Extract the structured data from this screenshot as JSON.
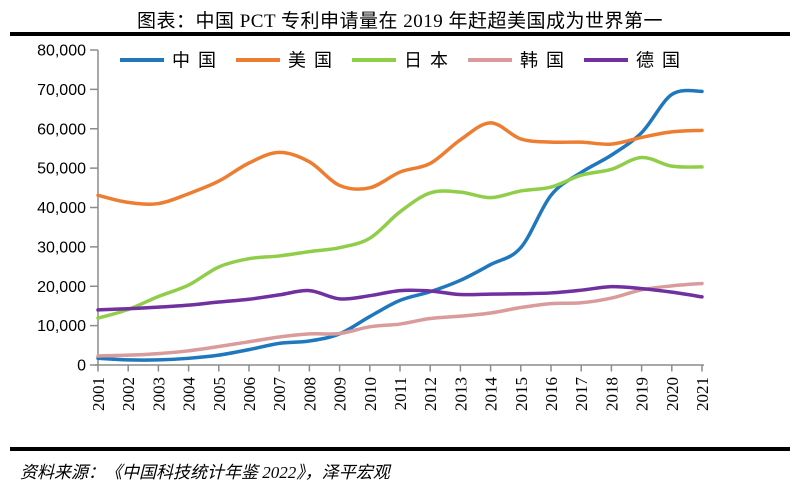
{
  "header": {
    "title": "图表：中国 PCT 专利申请量在 2019 年赶超美国成为世界第一"
  },
  "footer": {
    "source": "资料来源：《中国科技统计年鉴 2022》，泽平宏观"
  },
  "chart_data": {
    "type": "line",
    "title": "图表：中国 PCT 专利申请量在 2019 年赶超美国成为世界第一",
    "xlabel": "",
    "ylabel": "",
    "x": [
      "2001",
      "2002",
      "2003",
      "2004",
      "2005",
      "2006",
      "2007",
      "2008",
      "2009",
      "2010",
      "2011",
      "2012",
      "2013",
      "2014",
      "2015",
      "2016",
      "2017",
      "2018",
      "2019",
      "2020",
      "2021"
    ],
    "series": [
      {
        "name": "中国",
        "key": "china",
        "color": "#1F78BE",
        "values": [
          1700,
          1300,
          1300,
          1700,
          2500,
          3900,
          5500,
          6100,
          7900,
          12300,
          16400,
          18600,
          21500,
          25500,
          29800,
          43100,
          48900,
          53300,
          59000,
          68700,
          69500
        ]
      },
      {
        "name": "美国",
        "key": "usa",
        "color": "#ED7D31",
        "values": [
          43100,
          41300,
          41000,
          43500,
          46700,
          51300,
          54000,
          51600,
          45600,
          45000,
          49000,
          51200,
          57200,
          61500,
          57400,
          56600,
          56600,
          56100,
          57800,
          59200,
          59600
        ]
      },
      {
        "name": "日本",
        "key": "japan",
        "color": "#90CE4A",
        "values": [
          11900,
          14100,
          17400,
          20300,
          24900,
          27000,
          27700,
          28800,
          29800,
          32200,
          38900,
          43700,
          43900,
          42500,
          44200,
          45200,
          48200,
          49700,
          52700,
          50500,
          50300
        ]
      },
      {
        "name": "韩国",
        "key": "korea",
        "color": "#D99B9B",
        "values": [
          2300,
          2500,
          2900,
          3600,
          4700,
          5900,
          7100,
          7900,
          8000,
          9700,
          10400,
          11800,
          12400,
          13200,
          14600,
          15600,
          15800,
          17000,
          19100,
          20100,
          20700
        ]
      },
      {
        "name": "德国",
        "key": "germany",
        "color": "#7030A0",
        "values": [
          14000,
          14300,
          14700,
          15200,
          16000,
          16700,
          17800,
          18900,
          16800,
          17600,
          18900,
          18800,
          17900,
          18000,
          18100,
          18300,
          19000,
          19900,
          19400,
          18500,
          17300
        ]
      }
    ],
    "ylim": [
      0,
      80000
    ],
    "ytick_step": 10000,
    "ytick_labels": [
      "0",
      "10,000",
      "20,000",
      "30,000",
      "40,000",
      "50,000",
      "60,000",
      "70,000",
      "80,000"
    ],
    "legend_position": "top",
    "grid": false,
    "smooth": true,
    "axis_color": "#8C8C8C"
  }
}
